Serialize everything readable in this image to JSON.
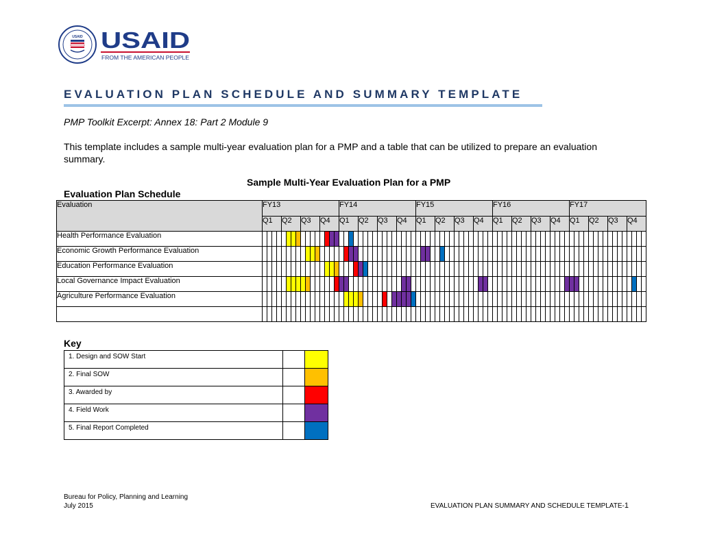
{
  "header": {
    "logo": {
      "wordmark": "USAID",
      "tagline": "FROM THE AMERICAN PEOPLE",
      "seal_text": "UNITED STATES AGENCY FOR INTERNATIONAL DEVELOPMENT",
      "seal_inner": "USAID",
      "brand_blue": "#1f3c88",
      "brand_red": "#c8102e"
    },
    "title": "EVALUATION PLAN SCHEDULE AND SUMMARY TEMPLATE",
    "subtitle": "PMP Toolkit Excerpt: Annex 18: Part 2 Module 9",
    "intro": "This template includes a sample multi-year evaluation plan for a PMP and a table that can be utilized to prepare an evaluation summary."
  },
  "schedule": {
    "table_title": "Sample Multi-Year Evaluation Plan for a PMP",
    "section_title": "Evaluation Plan Schedule",
    "first_col_header": "Evaluation",
    "fiscal_years": [
      "FY13",
      "FY14",
      "FY15",
      "FY16",
      "FY17"
    ],
    "quarters": [
      "Q1",
      "Q2",
      "Q3",
      "Q4"
    ],
    "colors": {
      "1": "#ffff00",
      "2": "#ffc000",
      "3": "#ff0000",
      "4": "#7030a0",
      "5": "#0070c0"
    },
    "rows": [
      {
        "name": "Health Performance Evaluation",
        "cells": [
          0,
          0,
          0,
          0,
          0,
          1,
          1,
          2,
          0,
          0,
          0,
          0,
          0,
          3,
          4,
          4,
          0,
          0,
          5,
          0,
          0,
          0,
          0,
          0,
          0,
          0,
          0,
          0,
          0,
          0,
          0,
          0,
          0,
          0,
          0,
          0,
          0,
          0,
          0,
          0,
          0,
          0,
          0,
          0,
          0,
          0,
          0,
          0,
          0,
          0,
          0,
          0,
          0,
          0,
          0,
          0,
          0,
          0,
          0,
          0,
          0,
          0,
          0,
          0,
          0,
          0,
          0,
          0,
          0,
          0,
          0,
          0,
          0,
          0,
          0,
          0,
          0,
          0,
          0,
          0
        ]
      },
      {
        "name": "Economic Growth Performance Evaluation",
        "cells": [
          0,
          0,
          0,
          0,
          0,
          0,
          0,
          0,
          0,
          1,
          1,
          2,
          0,
          0,
          0,
          0,
          0,
          3,
          4,
          4,
          0,
          0,
          0,
          0,
          0,
          0,
          0,
          0,
          0,
          0,
          0,
          0,
          0,
          4,
          4,
          0,
          0,
          5,
          0,
          0,
          0,
          0,
          0,
          0,
          0,
          0,
          0,
          0,
          0,
          0,
          0,
          0,
          0,
          0,
          0,
          0,
          0,
          0,
          0,
          0,
          0,
          0,
          0,
          0,
          0,
          0,
          0,
          0,
          0,
          0,
          0,
          0,
          0,
          0,
          0,
          0,
          0,
          0,
          0,
          0
        ]
      },
      {
        "name": "Education Performance Evaluation",
        "cells": [
          0,
          0,
          0,
          0,
          0,
          0,
          0,
          0,
          0,
          0,
          0,
          0,
          0,
          1,
          1,
          2,
          0,
          0,
          0,
          3,
          4,
          5,
          0,
          0,
          0,
          0,
          0,
          0,
          0,
          0,
          0,
          0,
          0,
          0,
          0,
          0,
          0,
          0,
          0,
          0,
          0,
          0,
          0,
          0,
          0,
          0,
          0,
          0,
          0,
          0,
          0,
          0,
          0,
          0,
          0,
          0,
          0,
          0,
          0,
          0,
          0,
          0,
          0,
          0,
          0,
          0,
          0,
          0,
          0,
          0,
          0,
          0,
          0,
          0,
          0,
          0,
          0,
          0,
          0,
          0
        ]
      },
      {
        "name": "Local Governance Impact Evaluation",
        "cells": [
          0,
          0,
          0,
          0,
          0,
          1,
          1,
          1,
          1,
          2,
          0,
          0,
          0,
          0,
          0,
          3,
          4,
          4,
          0,
          0,
          0,
          0,
          0,
          0,
          0,
          0,
          0,
          0,
          0,
          4,
          4,
          0,
          0,
          0,
          0,
          0,
          0,
          0,
          0,
          0,
          0,
          0,
          0,
          0,
          0,
          4,
          4,
          0,
          0,
          0,
          0,
          0,
          0,
          0,
          0,
          0,
          0,
          0,
          0,
          0,
          0,
          0,
          0,
          4,
          4,
          4,
          0,
          0,
          0,
          0,
          0,
          0,
          0,
          0,
          0,
          0,
          0,
          5,
          0,
          0
        ]
      },
      {
        "name": "Agriculture Performance Evaluation",
        "cells": [
          0,
          0,
          0,
          0,
          0,
          0,
          0,
          0,
          0,
          0,
          0,
          0,
          0,
          0,
          0,
          0,
          0,
          1,
          1,
          1,
          2,
          0,
          0,
          0,
          0,
          3,
          0,
          4,
          4,
          4,
          4,
          5,
          0,
          0,
          0,
          0,
          0,
          0,
          0,
          0,
          0,
          0,
          0,
          0,
          0,
          0,
          0,
          0,
          0,
          0,
          0,
          0,
          0,
          0,
          0,
          0,
          0,
          0,
          0,
          0,
          0,
          0,
          0,
          0,
          0,
          0,
          0,
          0,
          0,
          0,
          0,
          0,
          0,
          0,
          0,
          0,
          0,
          0,
          0,
          0
        ]
      },
      {
        "name": "",
        "cells": [
          0,
          0,
          0,
          0,
          0,
          0,
          0,
          0,
          0,
          0,
          0,
          0,
          0,
          0,
          0,
          0,
          0,
          0,
          0,
          0,
          0,
          0,
          0,
          0,
          0,
          0,
          0,
          0,
          0,
          0,
          0,
          0,
          0,
          0,
          0,
          0,
          0,
          0,
          0,
          0,
          0,
          0,
          0,
          0,
          0,
          0,
          0,
          0,
          0,
          0,
          0,
          0,
          0,
          0,
          0,
          0,
          0,
          0,
          0,
          0,
          0,
          0,
          0,
          0,
          0,
          0,
          0,
          0,
          0,
          0,
          0,
          0,
          0,
          0,
          0,
          0,
          0,
          0,
          0,
          0
        ]
      }
    ]
  },
  "key": {
    "title": "Key",
    "items": [
      {
        "label": "1. Design and SOW Start",
        "color": "#ffff00"
      },
      {
        "label": "2. Final SOW",
        "color": "#ffc000"
      },
      {
        "label": "3. Awarded by",
        "color": "#ff0000"
      },
      {
        "label": "4. Field Work",
        "color": "#7030a0"
      },
      {
        "label": "5. Final Report Completed",
        "color": "#0070c0"
      }
    ]
  },
  "footer": {
    "org": "Bureau for Policy, Planning and Learning",
    "date": "July 2015",
    "page_label": "EVALUATION PLAN SUMMARY AND SCHEDULE TEMPLATE-",
    "page_number": "1"
  }
}
